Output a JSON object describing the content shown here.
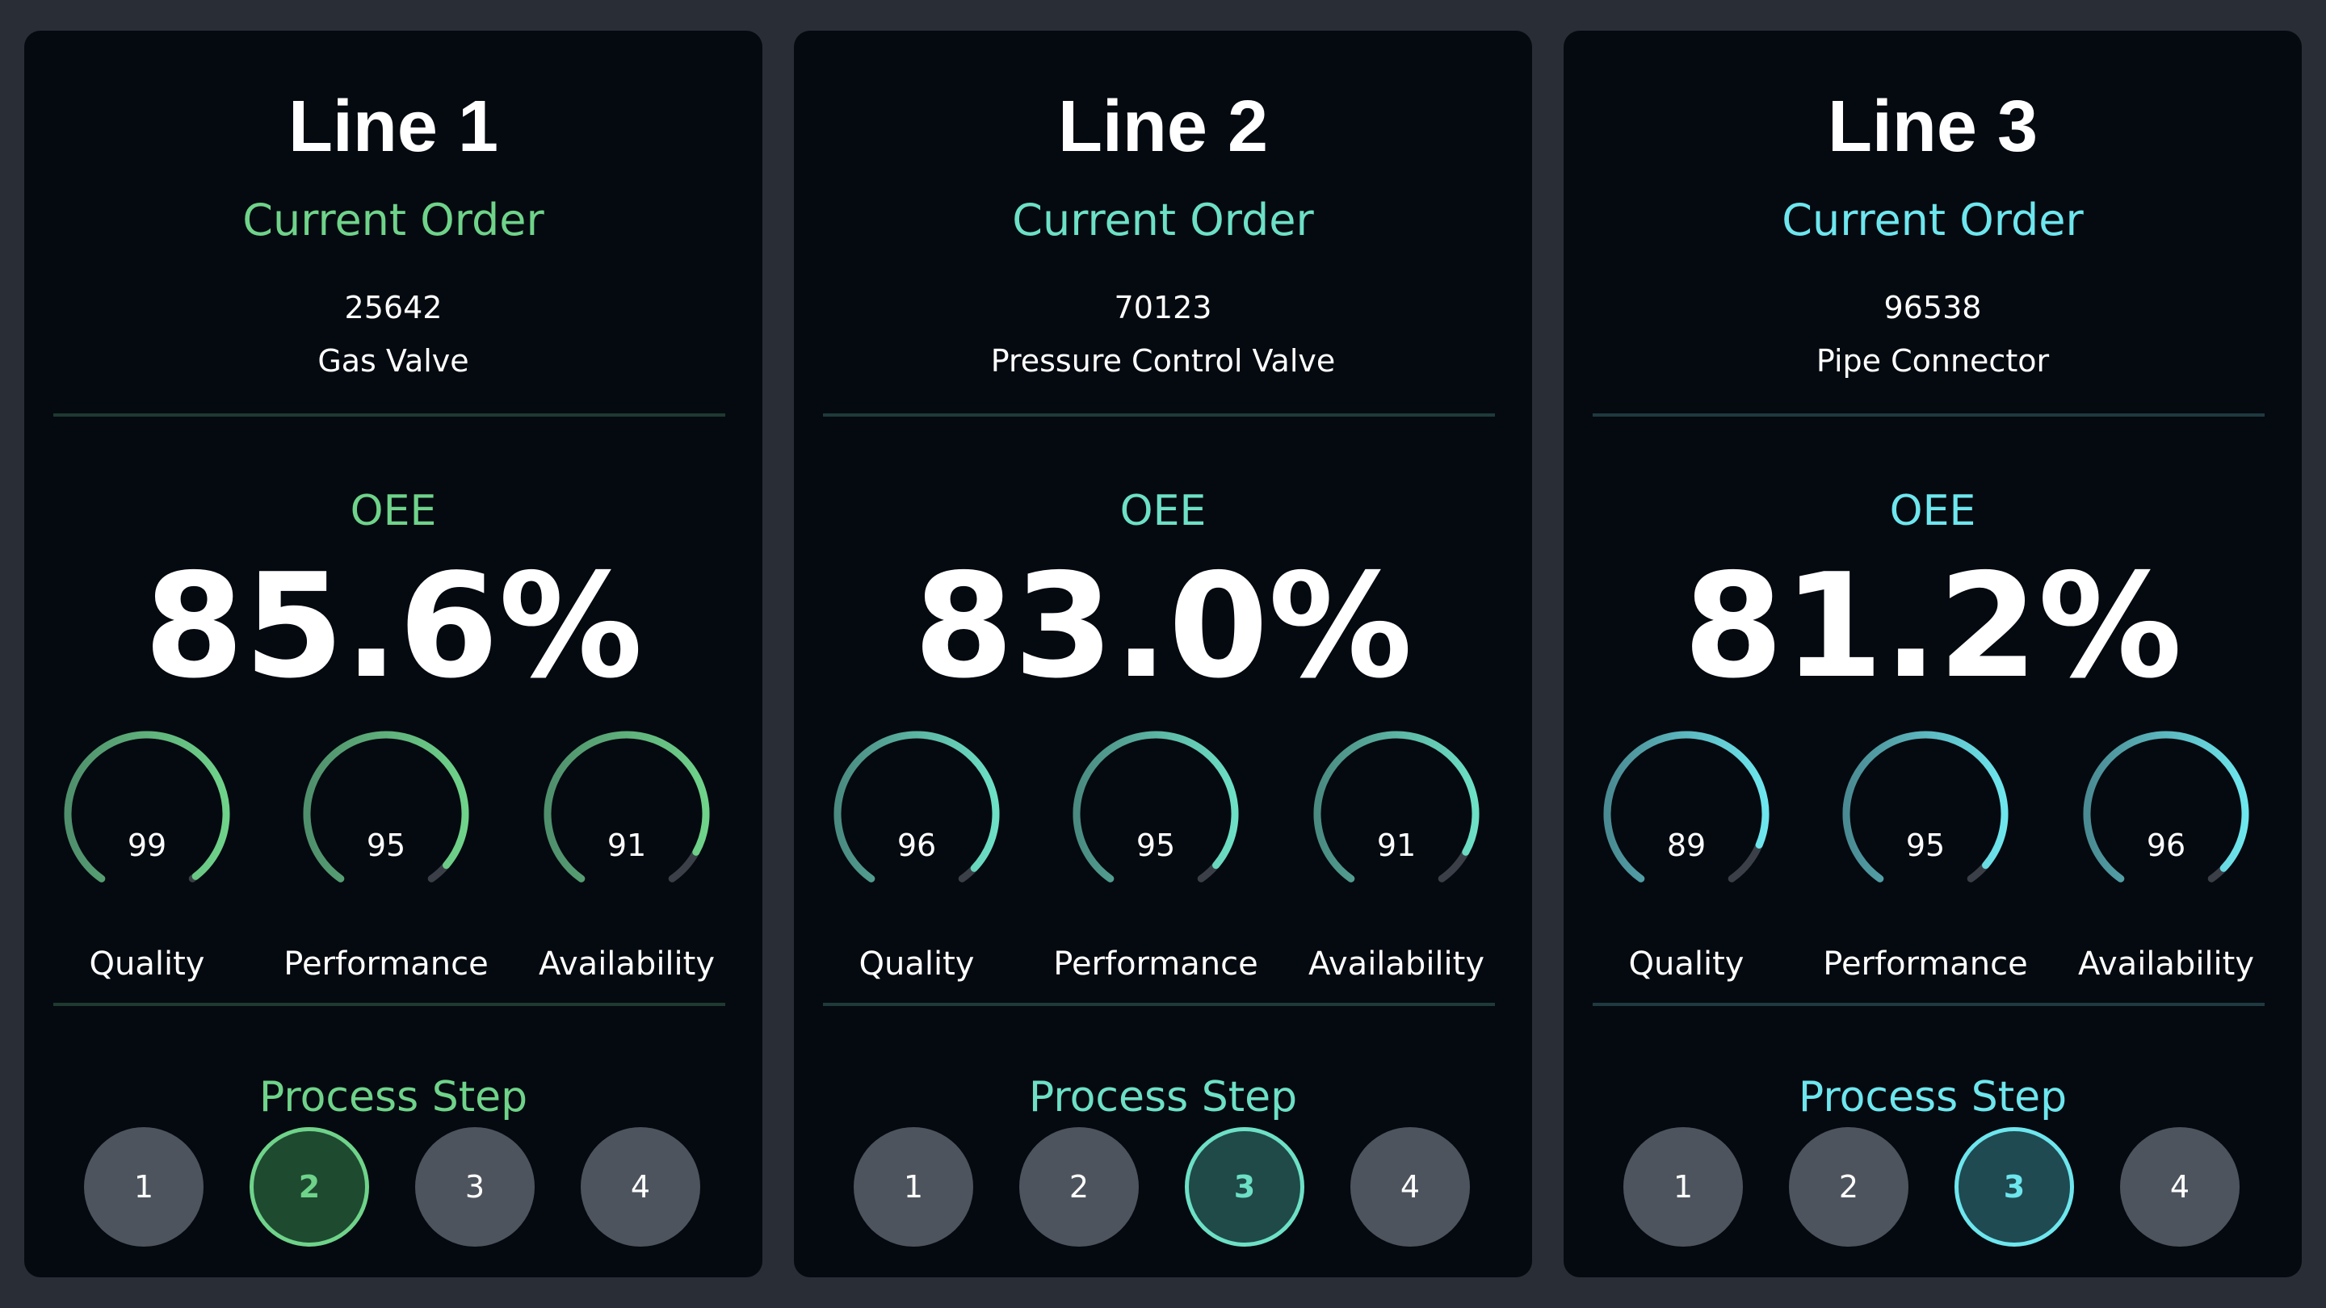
{
  "lines": [
    {
      "title": "Line 1",
      "accent": "#6fd38a",
      "accent_dim": "#4f8f6c",
      "divider_color": "#1f3a30",
      "order_heading": "Current Order",
      "order_number": "25642",
      "order_product": "Gas Valve",
      "oee_heading": "OEE",
      "oee_value": "85.6%",
      "metrics": [
        {
          "label": "Quality",
          "value": "99"
        },
        {
          "label": "Performance",
          "value": "95"
        },
        {
          "label": "Availability",
          "value": "91"
        }
      ],
      "step_heading": "Process Step",
      "steps": [
        "1",
        "2",
        "3",
        "4"
      ],
      "active_step": 2,
      "active_fill": "#1e4a30"
    },
    {
      "title": "Line 2",
      "accent": "#6de0c6",
      "accent_dim": "#4a8a80",
      "divider_color": "#1f3a3a",
      "order_heading": "Current Order",
      "order_number": "70123",
      "order_product": "Pressure Control Valve",
      "oee_heading": "OEE",
      "oee_value": "83.0%",
      "metrics": [
        {
          "label": "Quality",
          "value": "96"
        },
        {
          "label": "Performance",
          "value": "95"
        },
        {
          "label": "Availability",
          "value": "91"
        }
      ],
      "step_heading": "Process Step",
      "steps": [
        "1",
        "2",
        "3",
        "4"
      ],
      "active_step": 3,
      "active_fill": "#1f4a48"
    },
    {
      "title": "Line 3",
      "accent": "#6ee6ee",
      "accent_dim": "#4a8a92",
      "divider_color": "#1f3a40",
      "order_heading": "Current Order",
      "order_number": "96538",
      "order_product": "Pipe Connector",
      "oee_heading": "OEE",
      "oee_value": "81.2%",
      "metrics": [
        {
          "label": "Quality",
          "value": "89"
        },
        {
          "label": "Performance",
          "value": "95"
        },
        {
          "label": "Availability",
          "value": "96"
        }
      ],
      "step_heading": "Process Step",
      "steps": [
        "1",
        "2",
        "3",
        "4"
      ],
      "active_step": 3,
      "active_fill": "#1f4a52"
    }
  ]
}
